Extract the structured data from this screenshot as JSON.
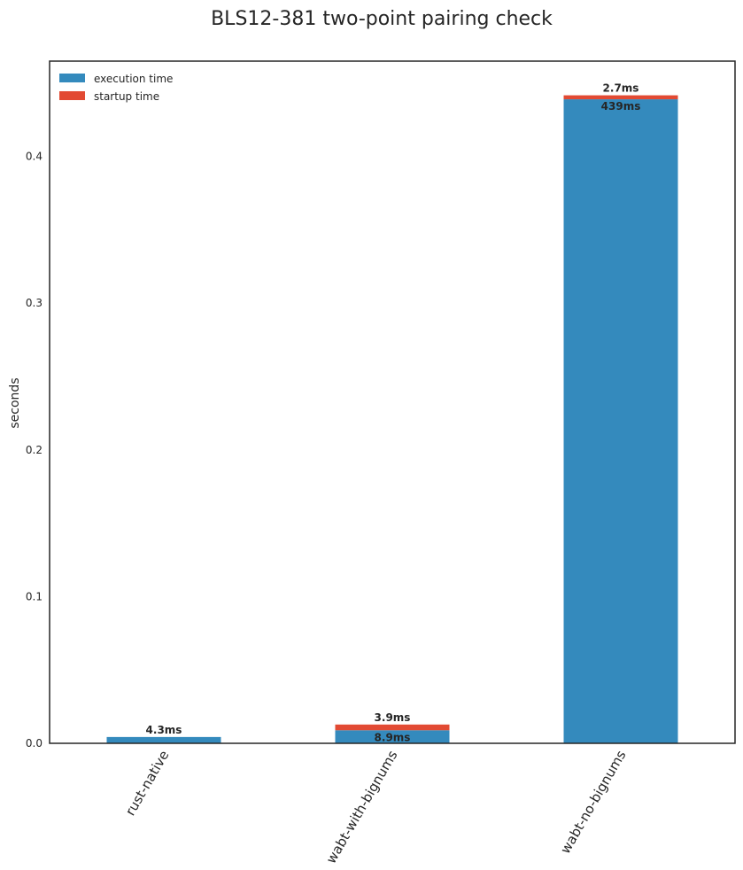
{
  "chart_data": {
    "type": "bar",
    "stacked": true,
    "title": "BLS12-381 two-point pairing check",
    "xlabel": "",
    "ylabel": "seconds",
    "categories": [
      "rust-native",
      "wabt-with-bignums",
      "wabt-no-bignums"
    ],
    "series": [
      {
        "name": "execution time",
        "color": "#348abd",
        "values": [
          0.0043,
          0.0089,
          0.439
        ],
        "labels": [
          "4.3ms",
          "8.9ms",
          "439ms"
        ]
      },
      {
        "name": "startup time",
        "color": "#e24a33",
        "values": [
          0.0,
          0.0039,
          0.0027
        ],
        "labels": [
          "",
          "3.9ms",
          "2.7ms"
        ]
      }
    ],
    "ylim": [
      0,
      0.465
    ],
    "yticks": [
      0.0,
      0.1,
      0.2,
      0.3,
      0.4
    ],
    "ytick_labels": [
      "0.0",
      "0.1",
      "0.2",
      "0.3",
      "0.4"
    ],
    "grid": false,
    "legend_position": "upper-left"
  }
}
